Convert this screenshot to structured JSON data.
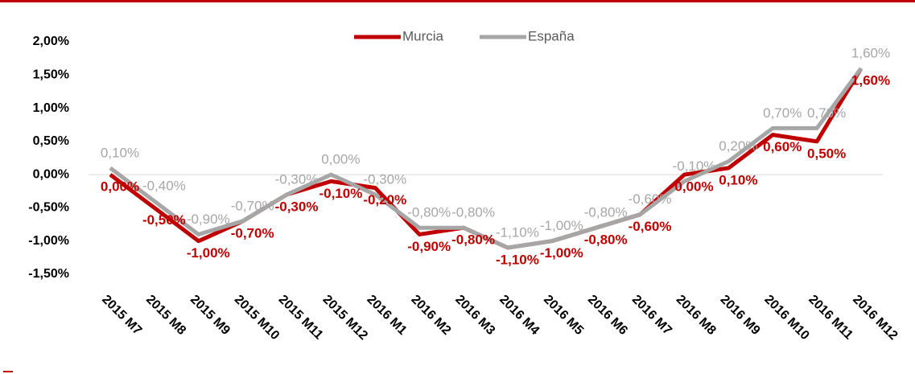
{
  "chart_data": {
    "type": "line",
    "categories": [
      "2015 M7",
      "2015 M8",
      "2015 M9",
      "2015 M10",
      "2015 M11",
      "2015 M12",
      "2016 M1",
      "2016 M2",
      "2016 M3",
      "2016 M4",
      "2016 M5",
      "2016 M6",
      "2016 M7",
      "2016 M8",
      "2016 M9",
      "2016 M10",
      "2016 M11",
      "2016 M12"
    ],
    "series": [
      {
        "name": "Murcia",
        "color": "#c00000",
        "values": [
          0,
          -0.5,
          -1.0,
          -0.7,
          -0.3,
          -0.1,
          -0.2,
          -0.9,
          -0.8,
          -1.1,
          -1.0,
          -0.8,
          -0.6,
          0,
          0.1,
          0.6,
          0.5,
          1.6
        ],
        "value_labels": [
          "0,00%",
          "-0,50%",
          "-1,00%",
          "-0,70%",
          "-0,30%",
          "-0,10%",
          "-0,20%",
          "-0,90%",
          "-0,80%",
          "-1,10%",
          "-1,00%",
          "-0,80%",
          "-0,60%",
          "0,00%",
          "0,10%",
          "0,60%",
          "0,50%",
          "1,60%"
        ]
      },
      {
        "name": "España",
        "color": "#a6a6a6",
        "values": [
          0.1,
          -0.4,
          -0.9,
          -0.7,
          -0.3,
          0,
          -0.3,
          -0.8,
          -0.8,
          -1.1,
          -1.0,
          -0.8,
          -0.6,
          -0.1,
          0.2,
          0.7,
          0.7,
          1.6
        ],
        "value_labels": [
          "0,10%",
          "-0,40%",
          "-0,90%",
          "-0,70%",
          "-0,30%",
          "0,00%",
          "-0,30%",
          "-0,80%",
          "-0,80%",
          "-1,10%",
          "-1,00%",
          "-0,80%",
          "-0,60%",
          "-0,10%",
          "0,20%",
          "0,70%",
          "0,70%",
          "1,60%"
        ]
      }
    ],
    "ylim": [
      -1.5,
      2.0
    ],
    "yticks": [
      {
        "value": 2.0,
        "label": "2,00%"
      },
      {
        "value": 1.5,
        "label": "1,50%"
      },
      {
        "value": 1.0,
        "label": "1,00%"
      },
      {
        "value": 0.5,
        "label": "0,50%"
      },
      {
        "value": 0,
        "label": "0,00%"
      },
      {
        "value": -0.5,
        "label": "-0,50%"
      },
      {
        "value": -1.0,
        "label": "-1,00%"
      },
      {
        "value": -1.5,
        "label": "-1,50%"
      }
    ],
    "legend": "top"
  }
}
